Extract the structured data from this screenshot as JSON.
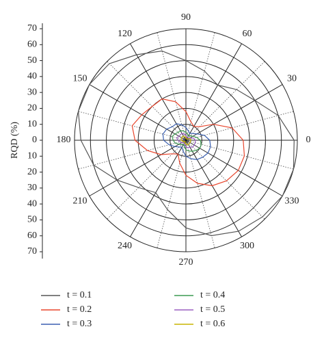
{
  "chart_data": {
    "type": "polar-line",
    "y_label": "RQD (%)",
    "rlim": [
      0,
      70
    ],
    "rticks": [
      0,
      10,
      20,
      30,
      40,
      50,
      60,
      70
    ],
    "thetaticks": [
      0,
      30,
      60,
      90,
      120,
      150,
      180,
      210,
      240,
      270,
      300,
      330
    ],
    "theta": [
      0,
      15,
      30,
      45,
      60,
      75,
      90,
      105,
      120,
      135,
      150,
      165,
      180,
      195,
      210,
      225,
      240,
      255,
      270,
      285,
      300,
      315,
      330,
      345
    ],
    "series": [
      {
        "name": "t = 0.1",
        "color": "#555555",
        "r": [
          68,
          60,
          50,
          45,
          40,
          45,
          50,
          58,
          62,
          68,
          70,
          70,
          66,
          60,
          50,
          42,
          38,
          45,
          55,
          62,
          66,
          68,
          70,
          70
        ]
      },
      {
        "name": "t = 0.2",
        "color": "#e8452c",
        "r": [
          36,
          30,
          20,
          12,
          10,
          12,
          18,
          25,
          30,
          30,
          32,
          35,
          32,
          25,
          18,
          12,
          10,
          15,
          22,
          28,
          33,
          36,
          38,
          38
        ]
      },
      {
        "name": "t = 0.3",
        "color": "#3a5fb0",
        "r": [
          15,
          12,
          8,
          6,
          5,
          6,
          8,
          10,
          12,
          12,
          14,
          15,
          14,
          11,
          8,
          6,
          5,
          7,
          10,
          12,
          14,
          15,
          16,
          16
        ]
      },
      {
        "name": "t = 0.4",
        "color": "#3c9a50",
        "r": [
          9,
          7,
          5,
          4,
          3,
          4,
          5,
          6,
          7,
          7,
          8,
          9,
          8,
          7,
          5,
          4,
          3,
          4,
          6,
          7,
          8,
          9,
          10,
          10
        ]
      },
      {
        "name": "t = 0.5",
        "color": "#9a5fc0",
        "r": [
          6,
          5,
          3,
          2,
          2,
          2,
          3,
          4,
          5,
          5,
          5,
          6,
          5,
          4,
          3,
          2,
          2,
          3,
          4,
          5,
          5,
          6,
          6,
          6
        ]
      },
      {
        "name": "t = 0.6",
        "color": "#c8b400",
        "r": [
          3,
          3,
          2,
          1,
          1,
          1,
          2,
          2,
          3,
          3,
          3,
          3,
          3,
          2,
          2,
          1,
          1,
          2,
          2,
          3,
          3,
          3,
          3,
          3
        ]
      }
    ]
  }
}
